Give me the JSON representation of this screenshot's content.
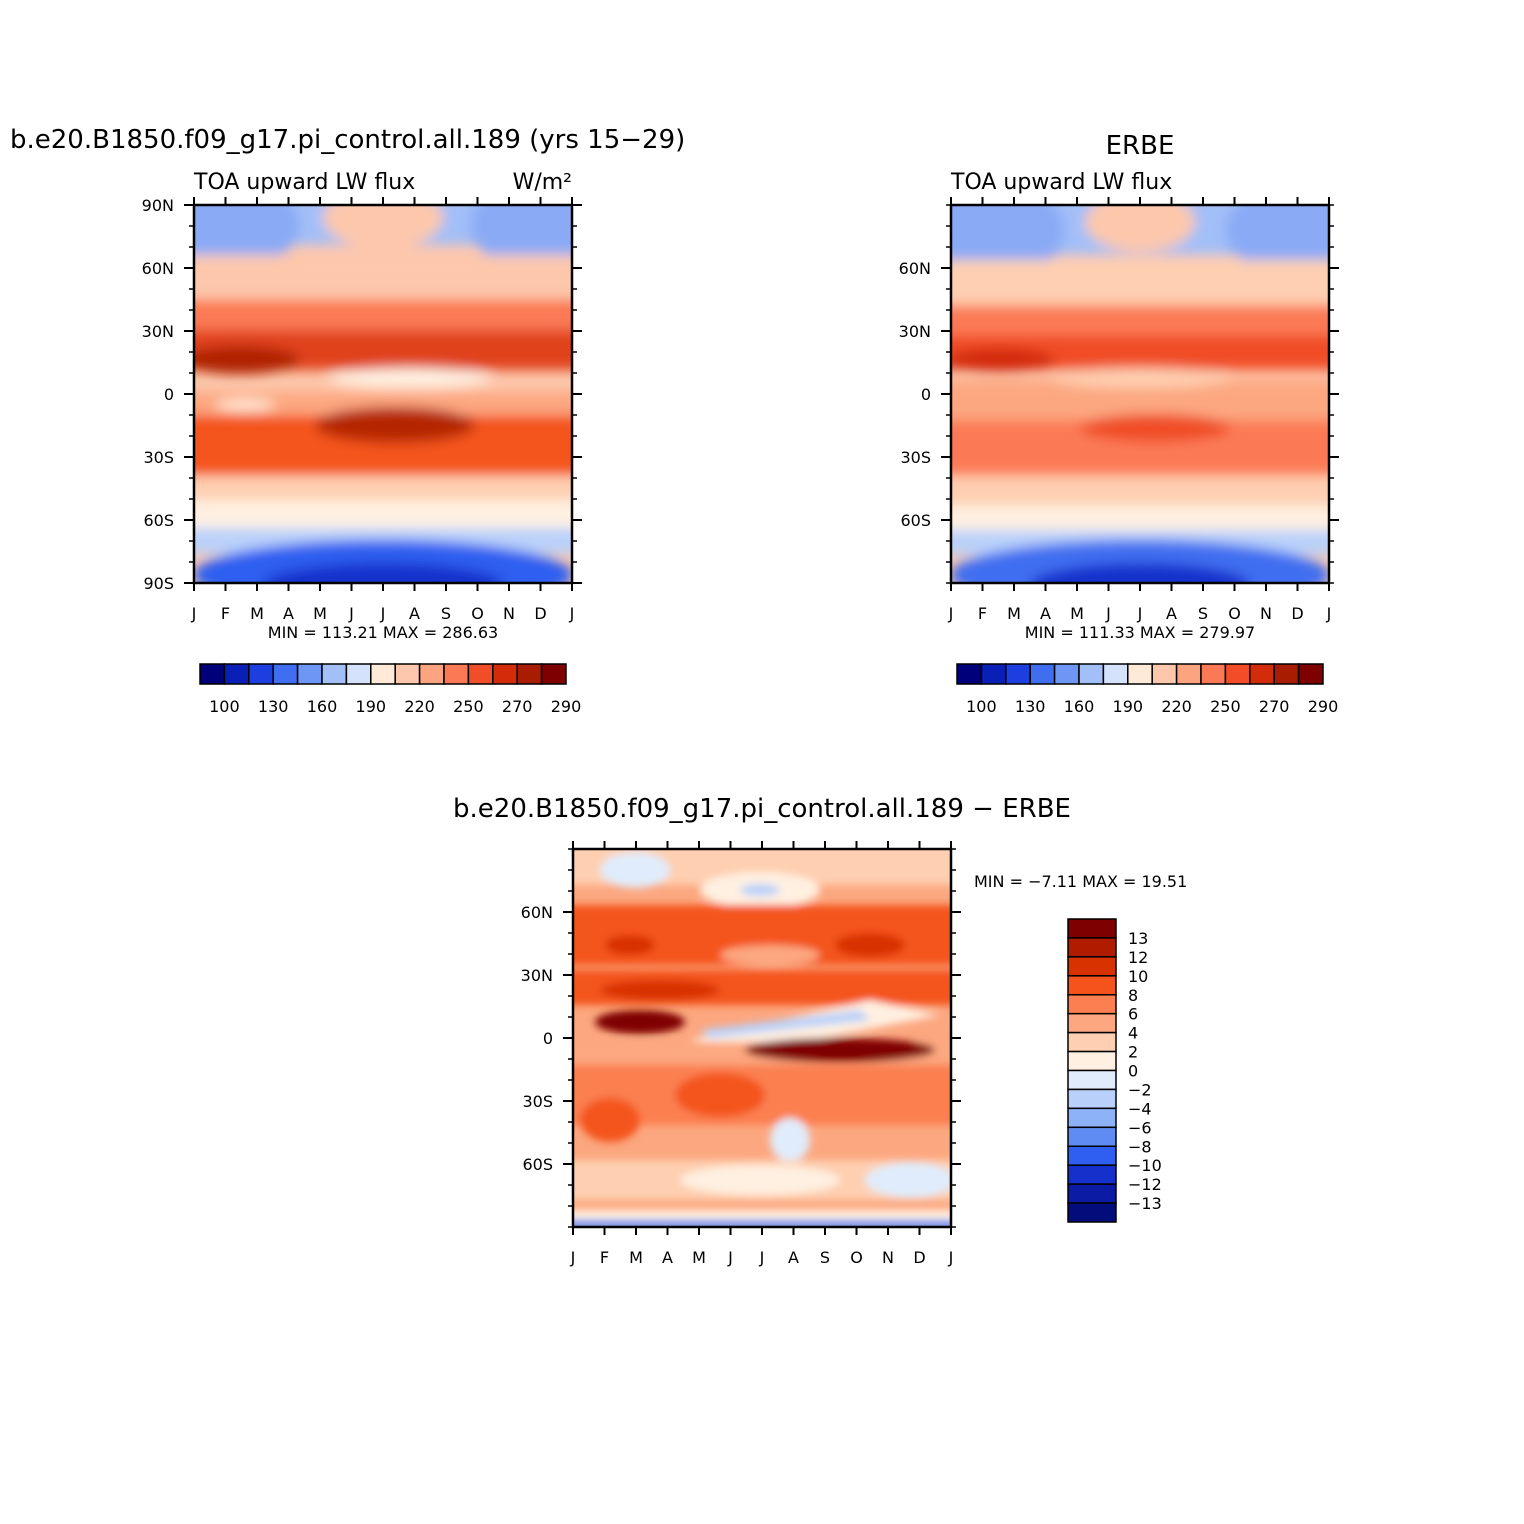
{
  "chart_data": [
    {
      "type": "heatmap",
      "title": "b.e20.B1850.f09_g17.pi_control.all.189 (yrs 15−29)",
      "left_label": "TOA upward LW flux",
      "right_label": "W/m²",
      "x_ticks": [
        "J",
        "F",
        "M",
        "A",
        "M",
        "J",
        "J",
        "A",
        "S",
        "O",
        "N",
        "D",
        "J"
      ],
      "y_ticks": [
        "90N",
        "60N",
        "30N",
        "0",
        "30S",
        "60S",
        "90S"
      ],
      "ylim": [
        -90,
        90
      ],
      "stats": "MIN =  113.21  MAX =  286.63",
      "min": 113.21,
      "max": 286.63,
      "colorbar": {
        "labels": [
          "100",
          "130",
          "160",
          "190",
          "220",
          "250",
          "270",
          "290"
        ],
        "colors": [
          "#00007a",
          "#0a1fb5",
          "#1e3fe0",
          "#3f6ef0",
          "#6e96f5",
          "#a3bff8",
          "#d4e3fb",
          "#ffead8",
          "#fdc7ab",
          "#fca380",
          "#fb7a55",
          "#f04d28",
          "#d32c0a",
          "#a81c02",
          "#7f0000"
        ]
      }
    },
    {
      "type": "heatmap",
      "title": "ERBE",
      "left_label": "TOA upward LW flux",
      "x_ticks": [
        "J",
        "F",
        "M",
        "A",
        "M",
        "J",
        "J",
        "A",
        "S",
        "O",
        "N",
        "D",
        "J"
      ],
      "y_ticks": [
        "60N",
        "30N",
        "0",
        "30S",
        "60S"
      ],
      "ylim": [
        -90,
        90
      ],
      "stats": "MIN =  111.33  MAX =  279.97",
      "min": 111.33,
      "max": 279.97,
      "colorbar": {
        "labels": [
          "100",
          "130",
          "160",
          "190",
          "220",
          "250",
          "270",
          "290"
        ],
        "colors": [
          "#00007a",
          "#0a1fb5",
          "#1e3fe0",
          "#3f6ef0",
          "#6e96f5",
          "#a3bff8",
          "#d4e3fb",
          "#ffead8",
          "#fdc7ab",
          "#fca380",
          "#fb7a55",
          "#f04d28",
          "#d32c0a",
          "#a81c02",
          "#7f0000"
        ]
      }
    },
    {
      "type": "heatmap",
      "title": "b.e20.B1850.f09_g17.pi_control.all.189  −  ERBE",
      "x_ticks": [
        "J",
        "F",
        "M",
        "A",
        "M",
        "J",
        "J",
        "A",
        "S",
        "O",
        "N",
        "D",
        "J"
      ],
      "y_ticks": [
        "60N",
        "30N",
        "0",
        "30S",
        "60S"
      ],
      "ylim": [
        -90,
        90
      ],
      "stats": "MIN =    −7.11  MAX =    19.51",
      "min": -7.11,
      "max": 19.51,
      "colorbar": {
        "orientation": "vertical",
        "labels": [
          "13",
          "12",
          "10",
          "8",
          "6",
          "4",
          "2",
          "0",
          "−2",
          "−4",
          "−6",
          "−8",
          "−10",
          "−12",
          "−13"
        ],
        "colors": [
          "#7f0000",
          "#b01c00",
          "#d83200",
          "#f4541c",
          "#fb7f50",
          "#fca780",
          "#fecfb0",
          "#fff0e1",
          "#e0ecfb",
          "#b9d1fa",
          "#8eb2f7",
          "#5e8cf2",
          "#2f5ff0",
          "#1630cc",
          "#0b1ba3",
          "#020c7a"
        ]
      }
    }
  ]
}
